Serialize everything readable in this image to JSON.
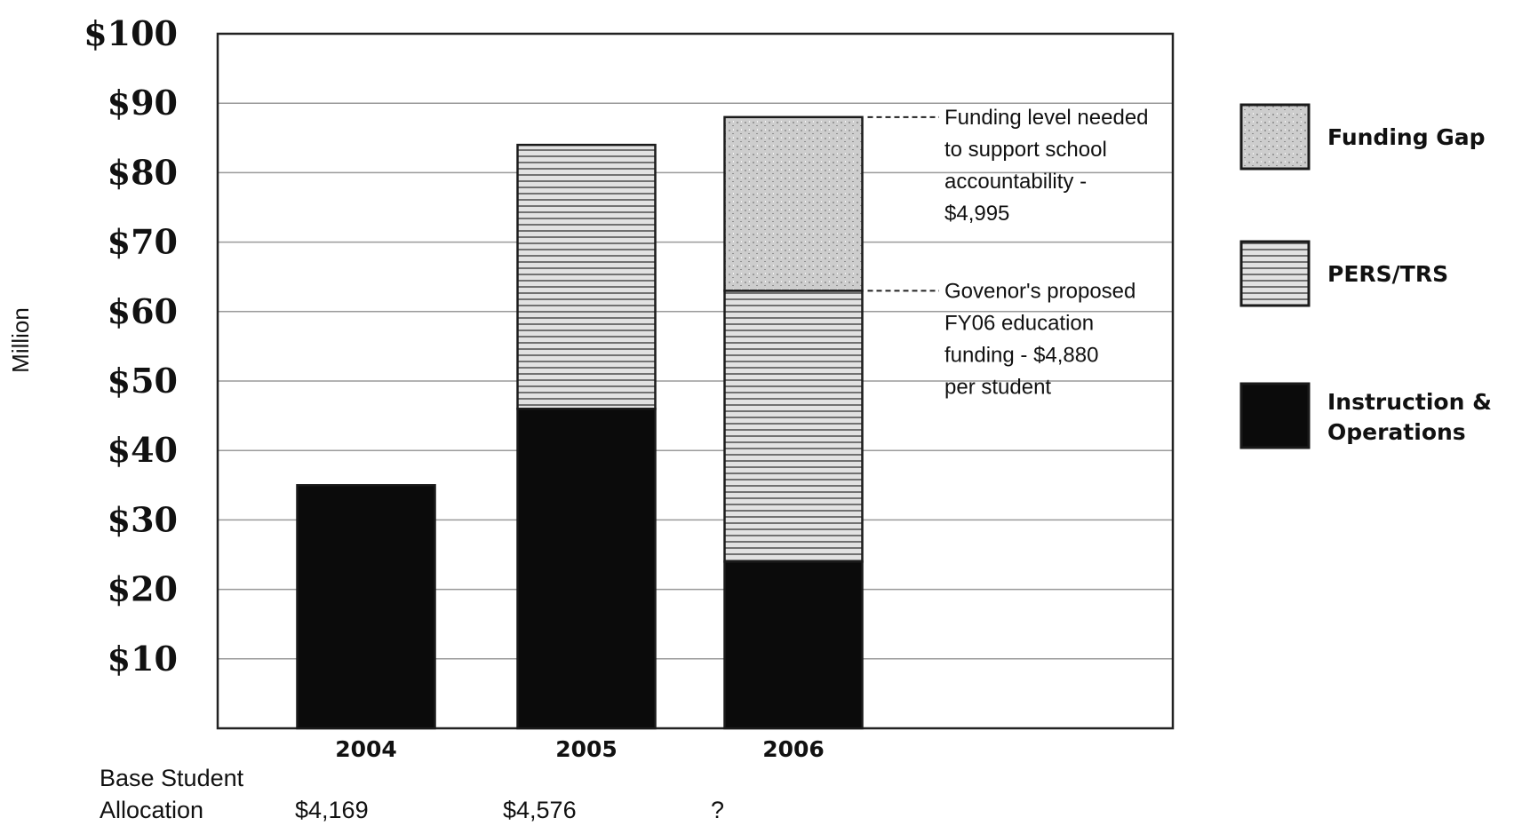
{
  "chart_data": {
    "type": "bar",
    "stacked": true,
    "categories": [
      "2004",
      "2005",
      "2006"
    ],
    "series": [
      {
        "name": "Instruction & Operations",
        "values": [
          35,
          46,
          24
        ],
        "color": "#0b0b0b",
        "pattern": "solid"
      },
      {
        "name": "PERS/TRS",
        "values": [
          0,
          38,
          39
        ],
        "color": "#cfcfcf",
        "pattern": "hlines"
      },
      {
        "name": "Funding Gap",
        "values": [
          0,
          0,
          25
        ],
        "color": "#c7c7c7",
        "pattern": "speckle"
      }
    ],
    "xlabel": "",
    "ylabel": "Million",
    "ylim": [
      0,
      100
    ],
    "yticks": [
      "$10",
      "$20",
      "$30",
      "$40",
      "$50",
      "$60",
      "$70",
      "$80",
      "$90",
      "$100"
    ],
    "grid": true,
    "legend_position": "right",
    "annotations": [
      {
        "lines": [
          "Funding level needed",
          "to support school",
          "accountability -",
          "$4,995"
        ]
      },
      {
        "lines": [
          "Govenor's proposed",
          "FY06 education",
          "funding - $4,880",
          "per student"
        ]
      }
    ],
    "footer": {
      "label_lines": [
        "Base Student",
        "Allocation"
      ],
      "values": [
        "$4,169",
        "$4,576",
        "?"
      ]
    }
  }
}
